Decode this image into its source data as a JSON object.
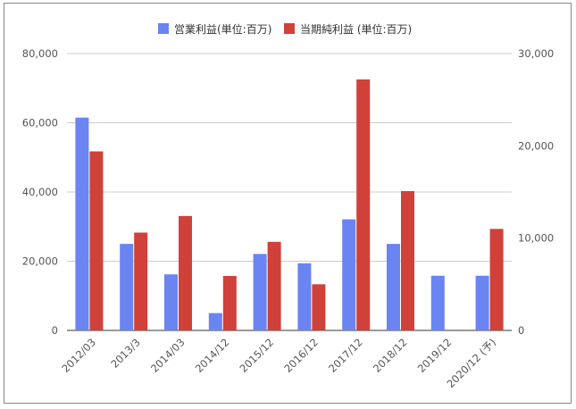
{
  "chart_data": {
    "type": "bar",
    "categories": [
      "2012/03",
      "2013/3",
      "2014/03",
      "2014/12",
      "2015/12",
      "2016/12",
      "2017/12",
      "2018/12",
      "2019/12",
      "2020/12 (予)"
    ],
    "series": [
      {
        "name": "営業利益(単位:百万)",
        "axis": "left",
        "color": "#6a84f2",
        "values": [
          61500,
          25000,
          16200,
          5000,
          22100,
          19400,
          32100,
          25000,
          15800,
          15800
        ]
      },
      {
        "name": "当期純利益 (単位:百万)",
        "axis": "right",
        "color": "#d0413a",
        "values": [
          19400,
          10600,
          12400,
          5900,
          9600,
          5000,
          27200,
          15100,
          null,
          11000
        ]
      }
    ],
    "y_left": {
      "min": 0,
      "max": 80000,
      "ticks": [
        "0",
        "20,000",
        "40,000",
        "60,000",
        "80,000"
      ]
    },
    "y_right": {
      "min": 0,
      "max": 30000,
      "ticks": [
        "0",
        "10,000",
        "20,000",
        "30,000"
      ]
    },
    "grid": true,
    "legend_position": "top-center"
  }
}
